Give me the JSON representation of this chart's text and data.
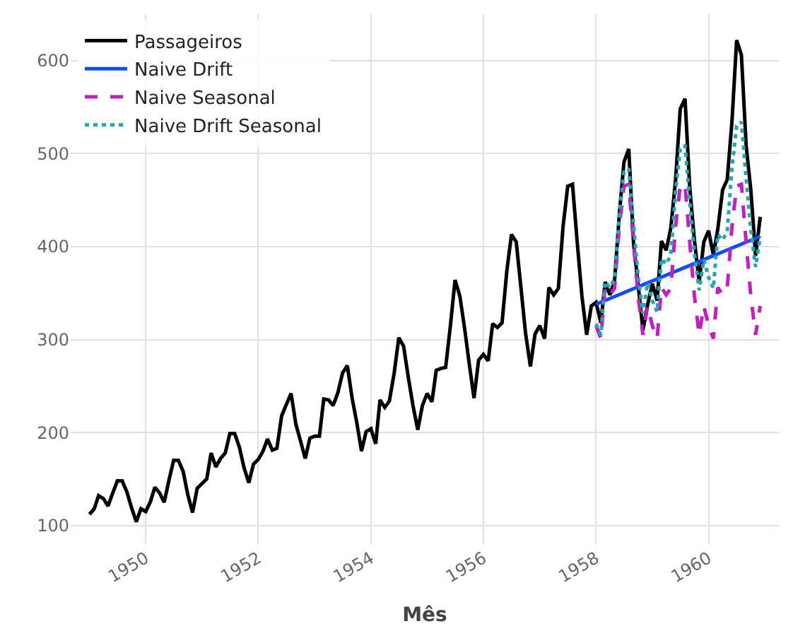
{
  "chart_data": {
    "type": "line",
    "xlabel": "Mês",
    "x": [
      "1949-01",
      "1949-02",
      "1949-03",
      "1949-04",
      "1949-05",
      "1949-06",
      "1949-07",
      "1949-08",
      "1949-09",
      "1949-10",
      "1949-11",
      "1949-12",
      "1950-01",
      "1950-02",
      "1950-03",
      "1950-04",
      "1950-05",
      "1950-06",
      "1950-07",
      "1950-08",
      "1950-09",
      "1950-10",
      "1950-11",
      "1950-12",
      "1951-01",
      "1951-02",
      "1951-03",
      "1951-04",
      "1951-05",
      "1951-06",
      "1951-07",
      "1951-08",
      "1951-09",
      "1951-10",
      "1951-11",
      "1951-12",
      "1952-01",
      "1952-02",
      "1952-03",
      "1952-04",
      "1952-05",
      "1952-06",
      "1952-07",
      "1952-08",
      "1952-09",
      "1952-10",
      "1952-11",
      "1952-12",
      "1953-01",
      "1953-02",
      "1953-03",
      "1953-04",
      "1953-05",
      "1953-06",
      "1953-07",
      "1953-08",
      "1953-09",
      "1953-10",
      "1953-11",
      "1953-12",
      "1954-01",
      "1954-02",
      "1954-03",
      "1954-04",
      "1954-05",
      "1954-06",
      "1954-07",
      "1954-08",
      "1954-09",
      "1954-10",
      "1954-11",
      "1954-12",
      "1955-01",
      "1955-02",
      "1955-03",
      "1955-04",
      "1955-05",
      "1955-06",
      "1955-07",
      "1955-08",
      "1955-09",
      "1955-10",
      "1955-11",
      "1955-12",
      "1956-01",
      "1956-02",
      "1956-03",
      "1956-04",
      "1956-05",
      "1956-06",
      "1956-07",
      "1956-08",
      "1956-09",
      "1956-10",
      "1956-11",
      "1956-12",
      "1957-01",
      "1957-02",
      "1957-03",
      "1957-04",
      "1957-05",
      "1957-06",
      "1957-07",
      "1957-08",
      "1957-09",
      "1957-10",
      "1957-11",
      "1957-12",
      "1958-01",
      "1958-02",
      "1958-03",
      "1958-04",
      "1958-05",
      "1958-06",
      "1958-07",
      "1958-08",
      "1958-09",
      "1958-10",
      "1958-11",
      "1958-12",
      "1959-01",
      "1959-02",
      "1959-03",
      "1959-04",
      "1959-05",
      "1959-06",
      "1959-07",
      "1959-08",
      "1959-09",
      "1959-10",
      "1959-11",
      "1959-12",
      "1960-01",
      "1960-02",
      "1960-03",
      "1960-04",
      "1960-05",
      "1960-06",
      "1960-07",
      "1960-08",
      "1960-09",
      "1960-10",
      "1960-11",
      "1960-12"
    ],
    "series": [
      {
        "name": "Passageiros",
        "color": "#000000",
        "line_style": "solid",
        "values": [
          112,
          118,
          132,
          129,
          121,
          135,
          148,
          148,
          136,
          119,
          104,
          118,
          115,
          126,
          141,
          135,
          125,
          149,
          170,
          170,
          158,
          133,
          114,
          140,
          145,
          150,
          178,
          163,
          172,
          178,
          199,
          199,
          184,
          162,
          146,
          166,
          171,
          180,
          193,
          181,
          183,
          218,
          230,
          242,
          209,
          191,
          172,
          194,
          196,
          196,
          236,
          235,
          229,
          243,
          264,
          272,
          237,
          211,
          180,
          201,
          204,
          188,
          235,
          227,
          234,
          264,
          302,
          293,
          259,
          229,
          203,
          229,
          242,
          233,
          267,
          269,
          270,
          315,
          364,
          347,
          312,
          274,
          237,
          278,
          284,
          277,
          317,
          313,
          318,
          374,
          413,
          405,
          355,
          306,
          271,
          306,
          315,
          301,
          356,
          348,
          355,
          422,
          465,
          467,
          404,
          347,
          305,
          336,
          340,
          318,
          362,
          348,
          363,
          435,
          491,
          505,
          404,
          359,
          310,
          337,
          360,
          342,
          406,
          396,
          420,
          472,
          548,
          559,
          463,
          407,
          362,
          405,
          417,
          391,
          419,
          461,
          472,
          535,
          622,
          606,
          508,
          461,
          390,
          432
        ]
      },
      {
        "name": "Naive Drift",
        "color": "#0f4cff",
        "line_style": "solid",
        "x": [
          "1958-01",
          "1960-12"
        ],
        "values": [
          338,
          411
        ]
      },
      {
        "name": "Naive Seasonal",
        "color": "#c31ec3",
        "line_style": "dashed",
        "x": [
          "1958-01",
          "1958-02",
          "1958-03",
          "1958-04",
          "1958-05",
          "1958-06",
          "1958-07",
          "1958-08",
          "1958-09",
          "1958-10",
          "1958-11",
          "1958-12",
          "1959-01",
          "1959-02",
          "1959-03",
          "1959-04",
          "1959-05",
          "1959-06",
          "1959-07",
          "1959-08",
          "1959-09",
          "1959-10",
          "1959-11",
          "1959-12",
          "1960-01",
          "1960-02",
          "1960-03",
          "1960-04",
          "1960-05",
          "1960-06",
          "1960-07",
          "1960-08",
          "1960-09",
          "1960-10",
          "1960-11",
          "1960-12"
        ],
        "values": [
          315,
          301,
          356,
          348,
          355,
          422,
          465,
          467,
          404,
          347,
          305,
          336,
          315,
          301,
          356,
          348,
          355,
          422,
          465,
          467,
          404,
          347,
          305,
          336,
          315,
          301,
          356,
          348,
          355,
          422,
          465,
          467,
          404,
          347,
          305,
          336
        ]
      },
      {
        "name": "Naive Drift Seasonal",
        "color": "#22a6b3",
        "line_style": "dotted",
        "x": [
          "1958-01",
          "1958-02",
          "1958-03",
          "1958-04",
          "1958-05",
          "1958-06",
          "1958-07",
          "1958-08",
          "1958-09",
          "1958-10",
          "1958-11",
          "1958-12",
          "1959-01",
          "1959-02",
          "1959-03",
          "1959-04",
          "1959-05",
          "1959-06",
          "1959-07",
          "1959-08",
          "1959-09",
          "1959-10",
          "1959-11",
          "1959-12",
          "1960-01",
          "1960-02",
          "1960-03",
          "1960-04",
          "1960-05",
          "1960-06",
          "1960-07",
          "1960-08",
          "1960-09",
          "1960-10",
          "1960-11",
          "1960-12"
        ],
        "values": [
          317,
          305,
          362,
          356,
          365,
          435,
          480,
          484,
          423,
          368,
          328,
          361,
          342,
          330,
          387,
          381,
          391,
          460,
          505,
          509,
          448,
          393,
          353,
          386,
          367,
          355,
          413,
          407,
          416,
          485,
          530,
          534,
          473,
          418,
          378,
          411
        ]
      }
    ],
    "xlim": [
      "1948-09",
      "1961-04"
    ],
    "xticks": [
      "1950",
      "1952",
      "1954",
      "1956",
      "1958",
      "1960"
    ],
    "ylim": [
      80,
      650
    ],
    "yticks": [
      100,
      200,
      300,
      400,
      500,
      600
    ],
    "grid": true,
    "legend": "top left"
  }
}
